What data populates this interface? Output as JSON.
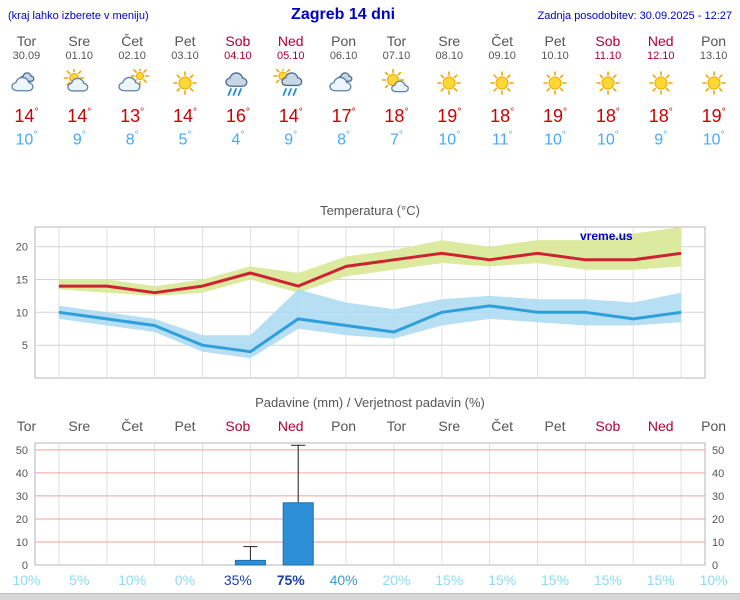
{
  "header": {
    "left_note": "(kraj lahko izberete v meniju)",
    "title": "Zagreb 14 dni",
    "updated": "Zadnja posodobitev: 30.09.2025 - 12:27"
  },
  "colors": {
    "header_blue": "#0000cc",
    "weekday": "#555555",
    "weekend": "#b00033",
    "temp_high": "#cc0000",
    "temp_low": "#44aaff",
    "max_band": "#dcea9f",
    "min_band": "#a9d9f2",
    "max_line": "#cc2233",
    "min_line": "#2f9fdc",
    "bar_fill": "#2d8fd5",
    "bar_stroke": "#1a6db0",
    "grid": "#e0e0e0",
    "precip_grid": "#f0a0a0",
    "prob_low": "#8adcf2",
    "prob_mid": "#3a9ad2",
    "prob_high": "#1b3fa8"
  },
  "charts": {
    "temp_title": "Temperatura (°C)",
    "precip_title": "Padavine (mm) / Verjetnost padavin (%)",
    "watermark": "vreme.us"
  },
  "days": [
    {
      "name": "Tor",
      "date": "30.09",
      "weekend": false,
      "icon": "cloudy",
      "high": "14°",
      "low": "10°",
      "prob": "10%",
      "prob_color": "#8adcf2",
      "prob_bold": false
    },
    {
      "name": "Sre",
      "date": "01.10",
      "weekend": false,
      "icon": "partly-cloudy",
      "high": "14°",
      "low": "9°",
      "prob": "5%",
      "prob_color": "#8adcf2",
      "prob_bold": false
    },
    {
      "name": "Čet",
      "date": "02.10",
      "weekend": false,
      "icon": "mostly-cloudy",
      "high": "13°",
      "low": "8°",
      "prob": "10%",
      "prob_color": "#8adcf2",
      "prob_bold": false
    },
    {
      "name": "Pet",
      "date": "03.10",
      "weekend": false,
      "icon": "sunny",
      "high": "14°",
      "low": "5°",
      "prob": "0%",
      "prob_color": "#8adcf2",
      "prob_bold": false
    },
    {
      "name": "Sob",
      "date": "04.10",
      "weekend": true,
      "icon": "rain",
      "high": "16°",
      "low": "4°",
      "prob": "35%",
      "prob_color": "#1b3fa8",
      "prob_bold": false
    },
    {
      "name": "Ned",
      "date": "05.10",
      "weekend": true,
      "icon": "sun-rain",
      "high": "14°",
      "low": "9°",
      "prob": "75%",
      "prob_color": "#1b3fa8",
      "prob_bold": true
    },
    {
      "name": "Pon",
      "date": "06.10",
      "weekend": false,
      "icon": "cloudy",
      "high": "17°",
      "low": "8°",
      "prob": "40%",
      "prob_color": "#3a9ad2",
      "prob_bold": false
    },
    {
      "name": "Tor",
      "date": "07.10",
      "weekend": false,
      "icon": "mostly-sunny",
      "high": "18°",
      "low": "7°",
      "prob": "20%",
      "prob_color": "#8adcf2",
      "prob_bold": false
    },
    {
      "name": "Sre",
      "date": "08.10",
      "weekend": false,
      "icon": "sunny",
      "high": "19°",
      "low": "10°",
      "prob": "15%",
      "prob_color": "#8adcf2",
      "prob_bold": false
    },
    {
      "name": "Čet",
      "date": "09.10",
      "weekend": false,
      "icon": "sunny",
      "high": "18°",
      "low": "11°",
      "prob": "15%",
      "prob_color": "#8adcf2",
      "prob_bold": false
    },
    {
      "name": "Pet",
      "date": "10.10",
      "weekend": false,
      "icon": "sunny",
      "high": "19°",
      "low": "10°",
      "prob": "15%",
      "prob_color": "#8adcf2",
      "prob_bold": false
    },
    {
      "name": "Sob",
      "date": "11.10",
      "weekend": true,
      "icon": "sunny",
      "high": "18°",
      "low": "10°",
      "prob": "15%",
      "prob_color": "#8adcf2",
      "prob_bold": false
    },
    {
      "name": "Ned",
      "date": "12.10",
      "weekend": true,
      "icon": "sunny",
      "high": "18°",
      "low": "9°",
      "prob": "15%",
      "prob_color": "#8adcf2",
      "prob_bold": false
    },
    {
      "name": "Pon",
      "date": "13.10",
      "weekend": false,
      "icon": "sunny",
      "high": "19°",
      "low": "10°",
      "prob": "10%",
      "prob_color": "#8adcf2",
      "prob_bold": false
    }
  ],
  "chart_data": [
    {
      "type": "line",
      "title": "Temperatura (°C)",
      "categories": [
        "Tor 30.09",
        "Sre 01.10",
        "Čet 02.10",
        "Pet 03.10",
        "Sob 04.10",
        "Ned 05.10",
        "Pon 06.10",
        "Tor 07.10",
        "Sre 08.10",
        "Čet 09.10",
        "Pet 10.10",
        "Sob 11.10",
        "Ned 12.10",
        "Pon 13.10"
      ],
      "ylim": [
        0,
        23
      ],
      "yticks": [
        5,
        10,
        15,
        20
      ],
      "grid": true,
      "legend": false,
      "series": [
        {
          "name": "max_temp",
          "values": [
            14,
            14,
            13,
            14,
            16,
            14,
            17,
            18,
            19,
            18,
            19,
            18,
            18,
            19
          ]
        },
        {
          "name": "max_band_upper",
          "values": [
            15,
            15,
            14,
            15,
            17,
            16,
            18.5,
            19.5,
            21,
            20,
            21,
            21,
            22,
            23
          ]
        },
        {
          "name": "max_band_lower",
          "values": [
            13.5,
            13,
            12.5,
            13,
            15,
            13,
            15.5,
            16.5,
            17.5,
            17,
            17.5,
            16.5,
            16.5,
            17
          ]
        },
        {
          "name": "min_temp",
          "values": [
            10,
            9,
            8,
            5,
            4,
            9,
            8,
            7,
            10,
            11,
            10,
            10,
            9,
            10
          ]
        },
        {
          "name": "min_band_upper",
          "values": [
            11,
            10,
            9,
            6.5,
            6.5,
            13.5,
            11.5,
            10.5,
            12,
            12.5,
            12,
            12,
            11.5,
            13
          ]
        },
        {
          "name": "min_band_lower",
          "values": [
            9,
            8,
            7,
            4,
            3,
            7.5,
            6.5,
            6,
            8,
            9,
            8.5,
            8,
            8,
            8.5
          ]
        }
      ]
    },
    {
      "type": "bar",
      "title": "Padavine (mm) / Verjetnost padavin (%)",
      "categories": [
        "Tor",
        "Sre",
        "Čet",
        "Pet",
        "Sob",
        "Ned",
        "Pon",
        "Tor",
        "Sre",
        "Čet",
        "Pet",
        "Sob",
        "Ned",
        "Pon"
      ],
      "ylim": [
        0,
        53
      ],
      "yticks": [
        0,
        10,
        20,
        30,
        40,
        50
      ],
      "grid": true,
      "precip_mm": [
        0,
        0,
        0,
        0,
        2,
        27,
        0,
        0,
        0,
        0,
        0,
        0,
        0,
        0
      ],
      "whisker_max_mm": [
        0,
        0,
        0,
        0,
        8,
        52,
        0,
        0,
        0,
        0,
        0,
        0,
        0,
        0
      ],
      "probability_pct": [
        10,
        5,
        10,
        0,
        35,
        75,
        40,
        20,
        15,
        15,
        15,
        15,
        15,
        10
      ]
    }
  ]
}
